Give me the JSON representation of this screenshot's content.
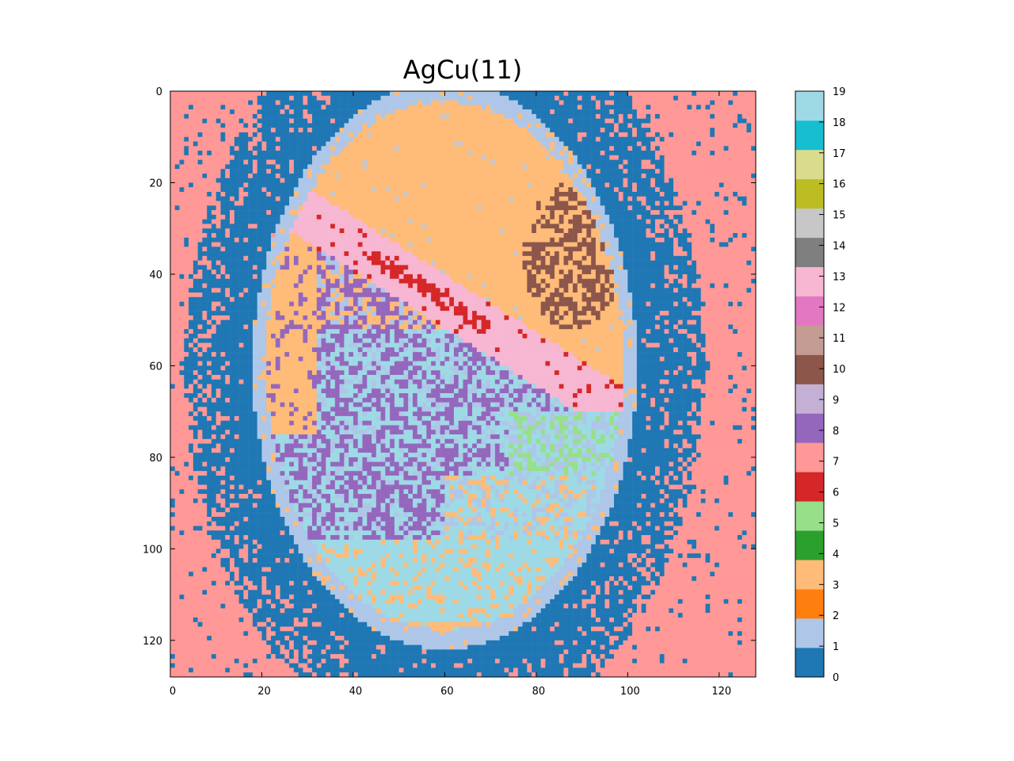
{
  "chart_data": {
    "type": "heatmap",
    "title": "AgCu(11)",
    "xlabel": "",
    "ylabel": "",
    "grid": "n",
    "xlim": [
      0,
      128
    ],
    "ylim": [
      128,
      0
    ],
    "x_ticks": [
      0,
      20,
      40,
      60,
      80,
      100,
      120
    ],
    "y_ticks": [
      0,
      20,
      40,
      60,
      80,
      100,
      120
    ],
    "colorbar": {
      "ticks": [
        0,
        1,
        2,
        3,
        4,
        5,
        6,
        7,
        8,
        9,
        10,
        11,
        12,
        13,
        14,
        15,
        16,
        17,
        18,
        19
      ],
      "colors": [
        "#1f77b4",
        "#aec7e8",
        "#ff7f0e",
        "#ffbb78",
        "#2ca02c",
        "#98df8a",
        "#d62728",
        "#ff9896",
        "#9467bd",
        "#c5b0d5",
        "#8c564b",
        "#c49c94",
        "#e377c2",
        "#f7b6d2",
        "#7f7f7f",
        "#c7c7c7",
        "#bcbd22",
        "#dbdb8d",
        "#17becf",
        "#9edae5"
      ]
    },
    "regions": [
      {
        "label": 7,
        "description": "outer background",
        "approx_center": [
          118,
          10
        ]
      },
      {
        "label": 0,
        "description": "ring around grain",
        "approx_center": [
          105,
          60
        ]
      },
      {
        "label": 3,
        "description": "upper-right lobe",
        "approx_center": [
          75,
          30
        ]
      },
      {
        "label": 10,
        "description": "speckled patch in upper-right lobe",
        "approx_center": [
          88,
          35
        ]
      },
      {
        "label": 13,
        "description": "diagonal band",
        "approx_center": [
          60,
          40
        ]
      },
      {
        "label": 6,
        "description": "streak",
        "approx_center": [
          65,
          44
        ]
      },
      {
        "label": 8,
        "description": "left-center area",
        "approx_center": [
          55,
          75
        ]
      },
      {
        "label": 19,
        "description": "lower-center area",
        "approx_center": [
          75,
          110
        ]
      },
      {
        "label": 1,
        "description": "grain edge",
        "approx_center": [
          22,
          45
        ]
      },
      {
        "label": 5,
        "description": "scattered patches",
        "approx_center": [
          78,
          82
        ]
      }
    ]
  }
}
